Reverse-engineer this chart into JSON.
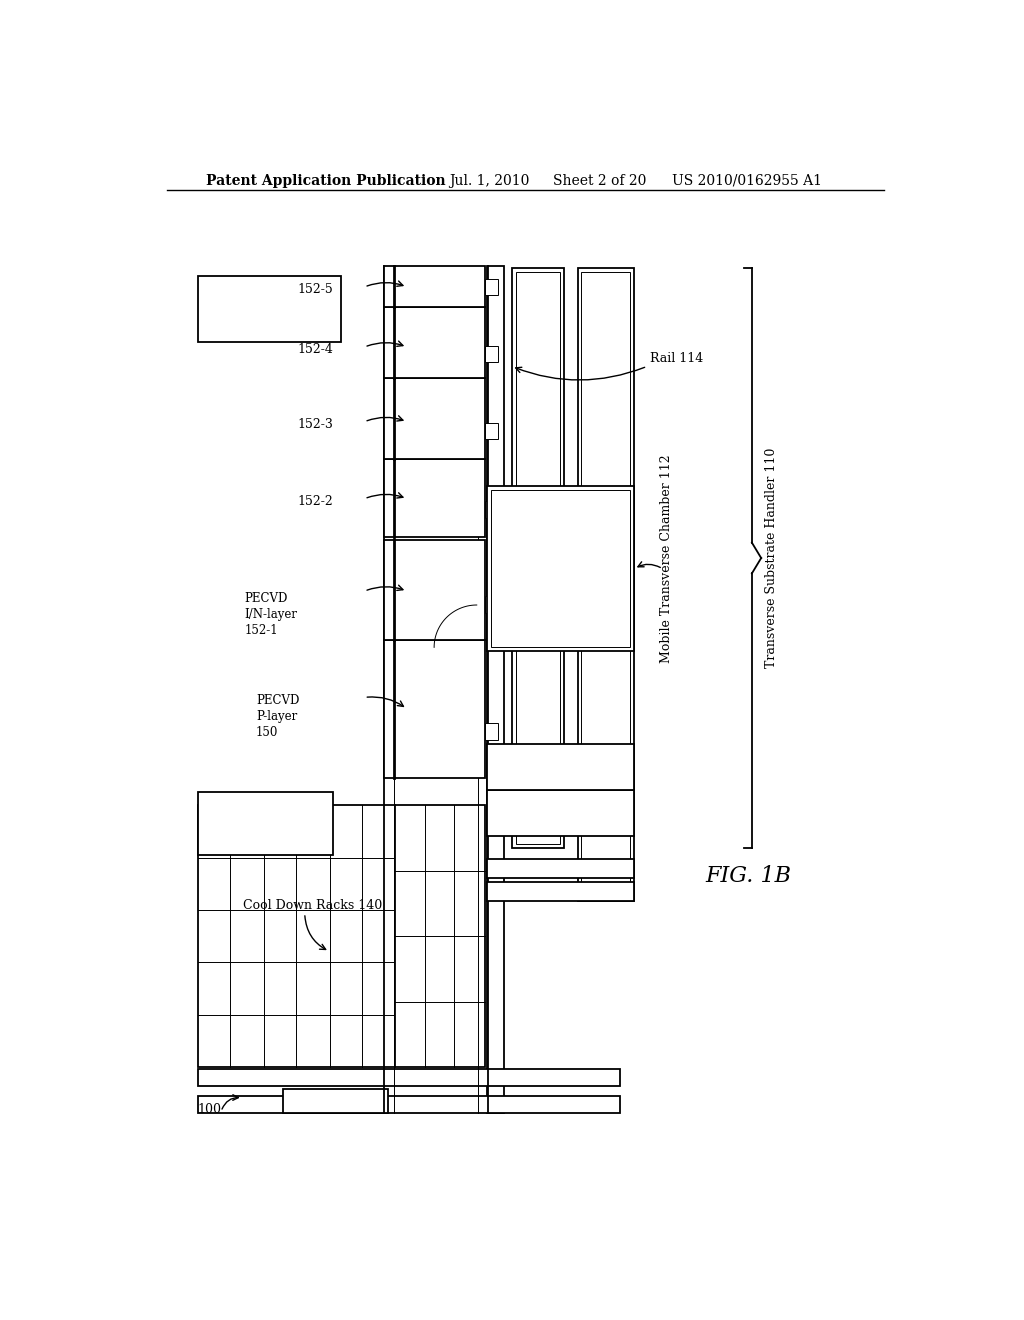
{
  "bg_color": "#ffffff",
  "line_color": "#000000",
  "header_text": "Patent Application Publication",
  "header_date": "Jul. 1, 2010",
  "header_sheet": "Sheet 2 of 20",
  "header_patent": "US 2010/0162955 A1",
  "fig_label": "FIG. 1B",
  "system_label": "100",
  "cooldown_label": "Cool Down Racks 140",
  "pecvd_p_label": "PECVD\nP-layer\n150",
  "pecvd_in_label": "PECVD\nI/N-layer\n152-1",
  "chamber_labels": [
    "152-2",
    "152-3",
    "152-4",
    "152-5"
  ],
  "mobile_chamber_label": "Mobile Transverse Chamber 112",
  "rail_label": "Rail 114",
  "handler_label": "Transverse Substrate Handler 110"
}
